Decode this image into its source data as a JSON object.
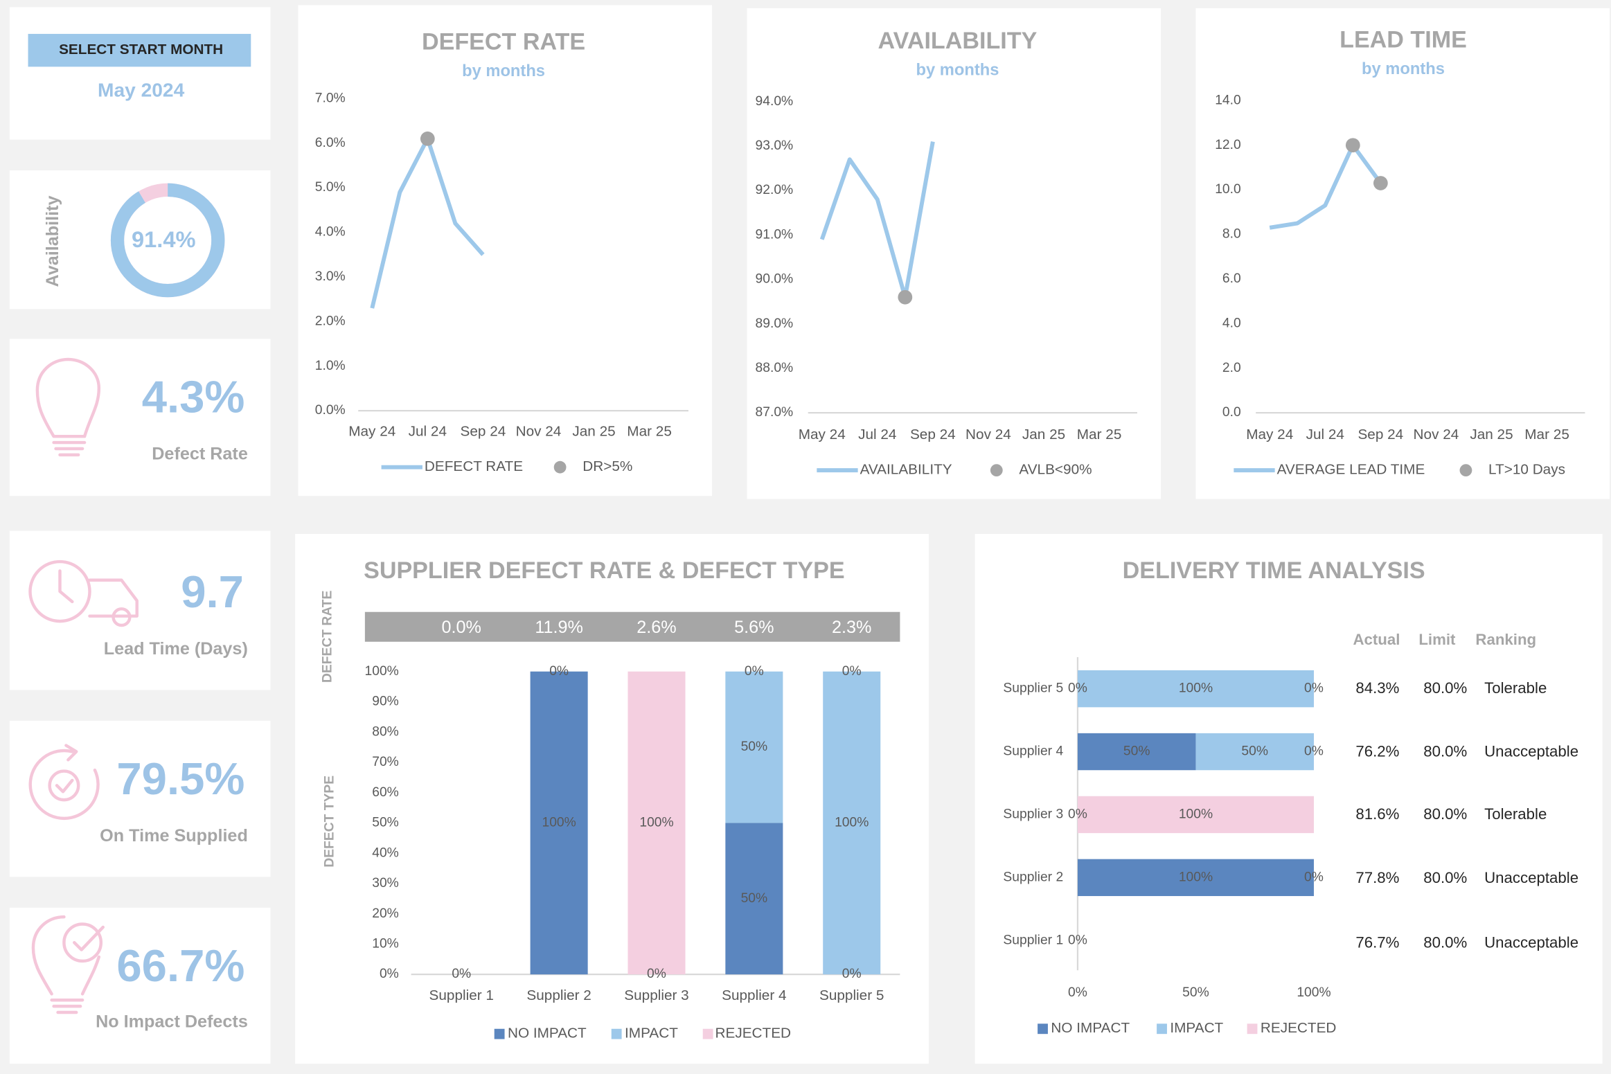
{
  "selector": {
    "label": "SELECT START MONTH",
    "value": "May 2024"
  },
  "kpis": [
    {
      "value": "4.3%",
      "label": "Defect Rate"
    },
    {
      "value": "9.7",
      "label": "Lead Time (Days)"
    },
    {
      "value": "79.5%",
      "label": "On Time Supplied"
    },
    {
      "value": "66.7%",
      "label": "No Impact Defects"
    }
  ],
  "chart_data": [
    {
      "type": "donut",
      "ylabel": "Availability",
      "values": [
        91.4
      ],
      "value_labels": [
        "91.4%"
      ],
      "ylim": [
        0,
        100
      ],
      "colors": [
        "#9dc8ea",
        "#f4cfe0"
      ]
    },
    {
      "type": "line",
      "title": "DEFECT RATE",
      "subtitle": "by months",
      "categories": [
        "May 24",
        null,
        "Jul 24",
        null,
        "Sep 24",
        null,
        "Nov 24",
        null,
        "Jan 25",
        null,
        "Mar 25",
        null
      ],
      "series": [
        {
          "name": "DEFECT RATE",
          "color": "#9dc8ea",
          "values": [
            2.3,
            4.9,
            6.1,
            4.2,
            3.5,
            null,
            null,
            null,
            null,
            null,
            null,
            null
          ]
        },
        {
          "name": "DR>5%",
          "color": "#a5a5a5",
          "marker": true,
          "values": [
            null,
            null,
            6.1,
            null,
            null,
            null,
            null,
            null,
            null,
            null,
            null,
            null
          ]
        }
      ],
      "ylim": [
        0,
        7
      ],
      "yticks": [
        {
          "value": 0,
          "label": "0.0%"
        },
        {
          "value": 1,
          "label": "1.0%"
        },
        {
          "value": 2,
          "label": "2.0%"
        },
        {
          "value": 3,
          "label": "3.0%"
        },
        {
          "value": 4,
          "label": "4.0%"
        },
        {
          "value": 5,
          "label": "5.0%"
        },
        {
          "value": 6,
          "label": "6.0%"
        },
        {
          "value": 7,
          "label": "7.0%"
        }
      ],
      "grid": false
    },
    {
      "type": "line",
      "title": "AVAILABILITY",
      "subtitle": "by months",
      "categories": [
        "May 24",
        null,
        "Jul 24",
        null,
        "Sep 24",
        null,
        "Nov 24",
        null,
        "Jan 25",
        null,
        "Mar 25",
        null
      ],
      "series": [
        {
          "name": "AVAILABILITY",
          "color": "#9dc8ea",
          "values": [
            90.9,
            92.7,
            91.8,
            89.6,
            93.1,
            null,
            null,
            null,
            null,
            null,
            null,
            null
          ]
        },
        {
          "name": "AVLB<90%",
          "color": "#a5a5a5",
          "marker": true,
          "values": [
            null,
            null,
            null,
            89.6,
            null,
            null,
            null,
            null,
            null,
            null,
            null,
            null
          ]
        }
      ],
      "ylim": [
        87,
        94
      ],
      "yticks": [
        {
          "value": 87,
          "label": "87.0%"
        },
        {
          "value": 88,
          "label": "88.0%"
        },
        {
          "value": 89,
          "label": "89.0%"
        },
        {
          "value": 90,
          "label": "90.0%"
        },
        {
          "value": 91,
          "label": "91.0%"
        },
        {
          "value": 92,
          "label": "92.0%"
        },
        {
          "value": 93,
          "label": "93.0%"
        },
        {
          "value": 94,
          "label": "94.0%"
        }
      ],
      "grid": false
    },
    {
      "type": "line",
      "title": "LEAD TIME",
      "subtitle": "by months",
      "categories": [
        "May 24",
        null,
        "Jul 24",
        null,
        "Sep 24",
        null,
        "Nov 24",
        null,
        "Jan 25",
        null,
        "Mar 25",
        null
      ],
      "series": [
        {
          "name": "AVERAGE LEAD TIME",
          "color": "#9dc8ea",
          "values": [
            8.3,
            8.5,
            9.3,
            12.0,
            10.3,
            null,
            null,
            null,
            null,
            null,
            null,
            null
          ]
        },
        {
          "name": "LT>10 Days",
          "color": "#a5a5a5",
          "marker": true,
          "values": [
            null,
            null,
            null,
            12.0,
            10.3,
            null,
            null,
            null,
            null,
            null,
            null,
            null
          ]
        }
      ],
      "ylim": [
        0,
        14
      ],
      "yticks": [
        {
          "value": 0,
          "label": "0.0"
        },
        {
          "value": 2,
          "label": "2.0"
        },
        {
          "value": 4,
          "label": "4.0"
        },
        {
          "value": 6,
          "label": "6.0"
        },
        {
          "value": 8,
          "label": "8.0"
        },
        {
          "value": 10,
          "label": "10.0"
        },
        {
          "value": 12,
          "label": "12.0"
        },
        {
          "value": 14,
          "label": "14.0"
        }
      ],
      "grid": false
    },
    {
      "type": "stacked_bar",
      "title": "SUPPLIER DEFECT RATE & DEFECT TYPE",
      "band_label": "DEFECT RATE",
      "ylabel": "DEFECT TYPE",
      "defect_rate_labels": [
        "0.0%",
        "11.9%",
        "2.6%",
        "5.6%",
        "2.3%"
      ],
      "categories": [
        "Supplier 1",
        "Supplier 2",
        "Supplier 3",
        "Supplier 4",
        "Supplier 5"
      ],
      "series": [
        {
          "name": "NO IMPACT",
          "color": "#5b86bf",
          "values": [
            0,
            100,
            0,
            50,
            0
          ],
          "value_labels": [
            "0%",
            "100%",
            "0%",
            "50%",
            "0%"
          ]
        },
        {
          "name": "IMPACT",
          "color": "#9dc8ea",
          "values": [
            0,
            0,
            0,
            50,
            100
          ],
          "value_labels": [
            null,
            null,
            null,
            "50%",
            "100%"
          ]
        },
        {
          "name": "REJECTED",
          "color": "#f4cfe0",
          "values": [
            0,
            0,
            100,
            0,
            0
          ],
          "value_labels": [
            null,
            "0%",
            "100%",
            "0%",
            "0%"
          ]
        }
      ],
      "ylim": [
        0,
        100
      ],
      "yticks": [
        {
          "value": 0,
          "label": "0%"
        },
        {
          "value": 10,
          "label": "10%"
        },
        {
          "value": 20,
          "label": "20%"
        },
        {
          "value": 30,
          "label": "30%"
        },
        {
          "value": 40,
          "label": "40%"
        },
        {
          "value": 50,
          "label": "50%"
        },
        {
          "value": 60,
          "label": "60%"
        },
        {
          "value": 70,
          "label": "70%"
        },
        {
          "value": 80,
          "label": "80%"
        },
        {
          "value": 90,
          "label": "90%"
        },
        {
          "value": 100,
          "label": "100%"
        }
      ],
      "grid": false
    },
    {
      "type": "hbar_stacked",
      "title": "DELIVERY TIME ANALYSIS",
      "categories": [
        "Supplier 1",
        "Supplier 2",
        "Supplier 3",
        "Supplier 4",
        "Supplier 5"
      ],
      "series": [
        {
          "name": "NO IMPACT",
          "color": "#5b86bf",
          "values": [
            0,
            100,
            0,
            50,
            0
          ],
          "value_labels": [
            "0%",
            "100%",
            "0%",
            "50%",
            "0%"
          ]
        },
        {
          "name": "IMPACT",
          "color": "#9dc8ea",
          "values": [
            0,
            0,
            0,
            50,
            100
          ],
          "value_labels": [
            null,
            null,
            null,
            "50%",
            "100%"
          ]
        },
        {
          "name": "REJECTED",
          "color": "#f4cfe0",
          "values": [
            0,
            0,
            100,
            0,
            0
          ],
          "value_labels": [
            null,
            "0%",
            "100%",
            "0%",
            "0%"
          ]
        }
      ],
      "xlim": [
        0,
        100
      ],
      "xticks": [
        {
          "value": 0,
          "label": "0%"
        },
        {
          "value": 50,
          "label": "50%"
        },
        {
          "value": 100,
          "label": "100%"
        }
      ],
      "grid": false
    }
  ],
  "delivery_table": {
    "columns": [
      "Actual",
      "Limit",
      "Ranking"
    ],
    "rows": [
      [
        "84.3%",
        "80.0%",
        "Tolerable"
      ],
      [
        "76.2%",
        "80.0%",
        "Unacceptable"
      ],
      [
        "81.6%",
        "80.0%",
        "Tolerable"
      ],
      [
        "77.8%",
        "80.0%",
        "Unacceptable"
      ],
      [
        "76.7%",
        "80.0%",
        "Unacceptable"
      ]
    ]
  }
}
